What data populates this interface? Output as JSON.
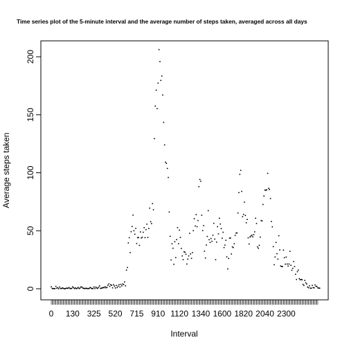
{
  "chart_data": {
    "type": "scatter",
    "title": "Time series plot of the 5-minute interval and the average number of steps taken, averaged across all days",
    "xlabel": "Interval",
    "ylabel": "Average steps taken",
    "ylim": [
      0,
      210
    ],
    "yticks": [
      0,
      50,
      100,
      150,
      200
    ],
    "xtick_labels": [
      "0",
      "130",
      "325",
      "520",
      "715",
      "910",
      "1120",
      "1340",
      "1600",
      "1820",
      "2040",
      "2300"
    ],
    "grid": false,
    "legend": "none",
    "num_categories": 288,
    "values": [
      1.7,
      0.3,
      0.1,
      0.2,
      0.1,
      2.1,
      0.5,
      0.9,
      0,
      1.5,
      0.3,
      0.2,
      0.7,
      0.4,
      0,
      0.1,
      0.4,
      0.5,
      0.3,
      1.1,
      0.3,
      0.2,
      0.3,
      1.6,
      0.9,
      0.2,
      0.8,
      0.1,
      0.4,
      1.1,
      0.2,
      0.6,
      1.6,
      1.4,
      0.6,
      0.4,
      0.1,
      0.4,
      0.3,
      0.2,
      0.1,
      0.4,
      1.1,
      0.5,
      0.1,
      0.3,
      1.5,
      0.2,
      1.4,
      0.7,
      0.3,
      1.3,
      2.5,
      0.3,
      0.5,
      0.7,
      1.1,
      0.9,
      1.7,
      0.8,
      1.3,
      3.0,
      4.2,
      2.0,
      3.5,
      2.9,
      0.8,
      3.5,
      2.3,
      0.7,
      2.8,
      1.0,
      2.2,
      3.5,
      1.5,
      3.8,
      2.5,
      4.1,
      3.6,
      5.9,
      2.5,
      16.0,
      18.3,
      39.5,
      44.0,
      31.2,
      49.2,
      53.7,
      63.5,
      50.0,
      47.0,
      52.1,
      39.0,
      44.0,
      44.2,
      37.4,
      49.0,
      43.8,
      44.4,
      48.7,
      52.7,
      44.1,
      51.0,
      55.7,
      44.3,
      52.0,
      69.5,
      57.8,
      56.2,
      73.4,
      68.2,
      129.4,
      157.5,
      171.2,
      155.4,
      177.3,
      206.2,
      195.9,
      179.6,
      183.4,
      167.0,
      143.5,
      124.0,
      109.1,
      108.1,
      103.7,
      95.9,
      66.2,
      45.2,
      24.8,
      38.8,
      34.9,
      21.1,
      40.6,
      26.9,
      42.4,
      52.7,
      38.9,
      50.5,
      44.3,
      34.8,
      28.3,
      25.1,
      31.9,
      31.4,
      29.7,
      21.3,
      25.5,
      28.3,
      47.8,
      30.0,
      26.2,
      31.2,
      50.1,
      60.4,
      54.1,
      64.0,
      53.5,
      58.8,
      88.0,
      94.2,
      92.7,
      63.4,
      50.2,
      54.5,
      32.4,
      26.5,
      37.7,
      45.1,
      67.3,
      42.3,
      39.9,
      43.3,
      40.9,
      46.2,
      56.4,
      42.8,
      25.1,
      40.2,
      53.5,
      47.3,
      60.8,
      55.8,
      51.9,
      43.6,
      48.7,
      35.5,
      37.6,
      41.8,
      27.5,
      17.1,
      26.1,
      43.6,
      43.8,
      30.0,
      36.1,
      35.5,
      38.8,
      46.0,
      48.0,
      48.1,
      65.3,
      82.9,
      98.7,
      102.1,
      83.9,
      62.1,
      64.1,
      74.7,
      63.2,
      56.9,
      59.8,
      43.9,
      38.6,
      44.7,
      45.5,
      46.2,
      44.8,
      46.7,
      49.1,
      60.8,
      56.3,
      36.1,
      34.9,
      37.4,
      44.5,
      58.8,
      58.5,
      72.6,
      79.9,
      85.1,
      84.9,
      85.4,
      99.5,
      86.6,
      85.6,
      77.8,
      58.0,
      53.4,
      36.3,
      20.7,
      27.4,
      40.0,
      30.2,
      25.5,
      45.7,
      33.5,
      19.6,
      19.2,
      19.2,
      33.3,
      26.8,
      21.2,
      27.3,
      21.3,
      19.5,
      21.3,
      32.3,
      20.2,
      15.9,
      17.6,
      23.5,
      19.2,
      12.5,
      8.0,
      14.7,
      16.1,
      8.7,
      7.8,
      8.0,
      7.8,
      3.8,
      2.8,
      7.2,
      5.1,
      4.1,
      1.5,
      0.9,
      2.6,
      0.5,
      0.5,
      2.9,
      1.0,
      0.8,
      3.3,
      2.1,
      2.0,
      0.8,
      0.6,
      0.5
    ]
  }
}
